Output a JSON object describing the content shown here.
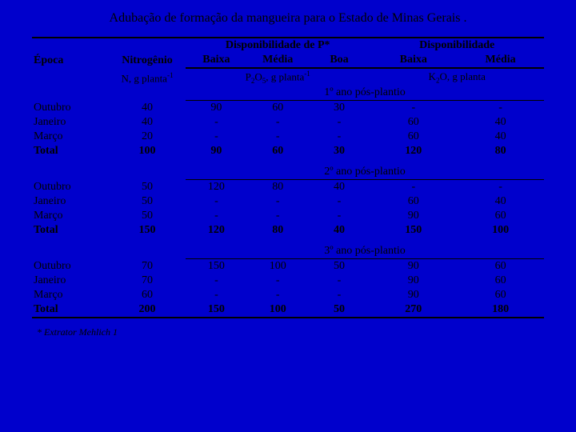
{
  "title": "Adubação de formação da mangueira para o Estado de Minas Gerais .",
  "headers": {
    "epoca": "Época",
    "nitrogenio": "Nitrogênio",
    "disp_p": "Disponibilidade de P*",
    "disp_k": "Disponibilidade",
    "baixa": "Baixa",
    "media": "Média",
    "boa": "Boa"
  },
  "units": {
    "n": "N, g planta",
    "p": "P₂O₅, g planta",
    "k": "K₂O, g planta"
  },
  "sections": [
    {
      "label": "1º ano pós-plantio",
      "rows": [
        {
          "epoca": "Outubro",
          "n": "40",
          "pb": "90",
          "pm": "60",
          "pg": "30",
          "kb": "-",
          "km": "-"
        },
        {
          "epoca": "Janeiro",
          "n": "40",
          "pb": "-",
          "pm": "-",
          "pg": "-",
          "kb": "60",
          "km": "40"
        },
        {
          "epoca": "Março",
          "n": "20",
          "pb": "-",
          "pm": "-",
          "pg": "-",
          "kb": "60",
          "km": "40"
        }
      ],
      "total": {
        "epoca": "Total",
        "n": "100",
        "pb": "90",
        "pm": "60",
        "pg": "30",
        "kb": "120",
        "km": "80"
      }
    },
    {
      "label": "2º ano pós-plantio",
      "rows": [
        {
          "epoca": "Outubro",
          "n": "50",
          "pb": "120",
          "pm": "80",
          "pg": "40",
          "kb": "-",
          "km": "-"
        },
        {
          "epoca": "Janeiro",
          "n": "50",
          "pb": "-",
          "pm": "-",
          "pg": "-",
          "kb": "60",
          "km": "40"
        },
        {
          "epoca": "Março",
          "n": "50",
          "pb": "-",
          "pm": "-",
          "pg": "-",
          "kb": "90",
          "km": "60"
        }
      ],
      "total": {
        "epoca": "Total",
        "n": "150",
        "pb": "120",
        "pm": "80",
        "pg": "40",
        "kb": "150",
        "km": "100"
      }
    },
    {
      "label": "3º ano pós-plantio",
      "rows": [
        {
          "epoca": "Outubro",
          "n": "70",
          "pb": "150",
          "pm": "100",
          "pg": "50",
          "kb": "90",
          "km": "60"
        },
        {
          "epoca": "Janeiro",
          "n": "70",
          "pb": "-",
          "pm": "-",
          "pg": "-",
          "kb": "90",
          "km": "60"
        },
        {
          "epoca": "Março",
          "n": "60",
          "pb": "-",
          "pm": "-",
          "pg": "-",
          "kb": "90",
          "km": "60"
        }
      ],
      "total": {
        "epoca": "Total",
        "n": "200",
        "pb": "150",
        "pm": "100",
        "pg": "50",
        "kb": "270",
        "km": "180"
      }
    }
  ],
  "footnote": "* Extrator Mehlich 1",
  "colors": {
    "background": "#0000cc",
    "text": "#000000"
  }
}
